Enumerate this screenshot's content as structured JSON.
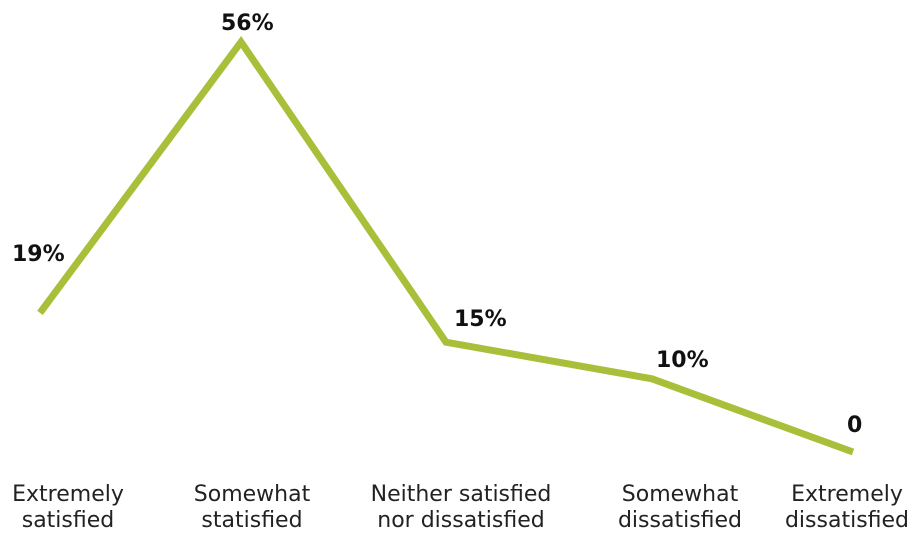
{
  "chart_data": {
    "type": "line",
    "categories": [
      [
        "Extremely",
        "satisfied"
      ],
      [
        "Somewhat",
        "statisfied"
      ],
      [
        "Neither satisfied",
        "nor dissatisfied"
      ],
      [
        "Somewhat",
        "dissatisfied"
      ],
      [
        "Extremely",
        "dissatisfied"
      ]
    ],
    "values": [
      19,
      56,
      15,
      10,
      0
    ],
    "data_labels": [
      "19%",
      "56%",
      "15%",
      "10%",
      "0"
    ],
    "line_color": "#a8bf3a",
    "grid": false,
    "legend": "none",
    "ylim": [
      0,
      56
    ]
  }
}
